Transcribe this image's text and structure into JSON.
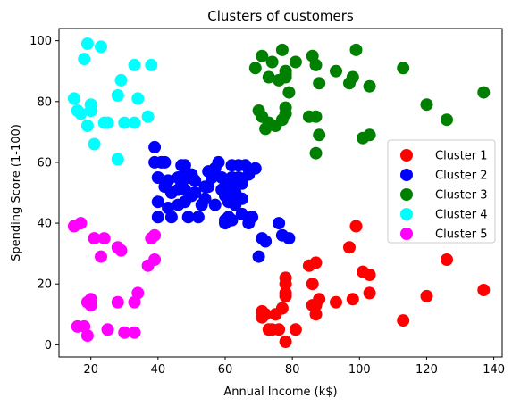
{
  "chart_data": {
    "type": "scatter",
    "title": "Clusters of customers",
    "xlabel": "Annual Income (k$)",
    "ylabel": "Spending Score (1-100)",
    "xlim": [
      10.5,
      142.5
    ],
    "ylim": [
      -4,
      104
    ],
    "xticks": [
      20,
      40,
      60,
      80,
      100,
      120,
      140
    ],
    "yticks": [
      0,
      20,
      40,
      60,
      80,
      100
    ],
    "grid": false,
    "legend_position": "center-right",
    "series": [
      {
        "name": "Cluster 1",
        "color": "#ff0000",
        "points": [
          [
            71,
            11
          ],
          [
            71,
            9
          ],
          [
            72,
            10
          ],
          [
            73,
            5
          ],
          [
            74,
            5
          ],
          [
            75,
            10
          ],
          [
            76,
            5
          ],
          [
            77,
            12
          ],
          [
            78,
            1
          ],
          [
            78,
            16
          ],
          [
            78,
            17
          ],
          [
            78,
            20
          ],
          [
            78,
            22
          ],
          [
            81,
            5
          ],
          [
            85,
            26
          ],
          [
            86,
            13
          ],
          [
            86,
            20
          ],
          [
            87,
            10
          ],
          [
            87,
            13
          ],
          [
            87,
            27
          ],
          [
            88,
            15
          ],
          [
            93,
            14
          ],
          [
            97,
            32
          ],
          [
            98,
            15
          ],
          [
            99,
            39
          ],
          [
            101,
            24
          ],
          [
            103,
            23
          ],
          [
            103,
            17
          ],
          [
            113,
            8
          ],
          [
            120,
            16
          ],
          [
            126,
            28
          ],
          [
            137,
            18
          ]
        ]
      },
      {
        "name": "Cluster 2",
        "color": "#0000ff",
        "points": [
          [
            39,
            65
          ],
          [
            39,
            60
          ],
          [
            40,
            55
          ],
          [
            40,
            47
          ],
          [
            40,
            42
          ],
          [
            41,
            60
          ],
          [
            42,
            60
          ],
          [
            42,
            52
          ],
          [
            43,
            54
          ],
          [
            43,
            45
          ],
          [
            44,
            42
          ],
          [
            44,
            50
          ],
          [
            46,
            51
          ],
          [
            46,
            55
          ],
          [
            46,
            46
          ],
          [
            47,
            53
          ],
          [
            47,
            59
          ],
          [
            48,
            47
          ],
          [
            48,
            51
          ],
          [
            48,
            56
          ],
          [
            48,
            59
          ],
          [
            49,
            55
          ],
          [
            49,
            42
          ],
          [
            50,
            49
          ],
          [
            50,
            56
          ],
          [
            51,
            54
          ],
          [
            51,
            50
          ],
          [
            52,
            42
          ],
          [
            53,
            46
          ],
          [
            54,
            52
          ],
          [
            54,
            48
          ],
          [
            55,
            52
          ],
          [
            55,
            57
          ],
          [
            56,
            55
          ],
          [
            57,
            46
          ],
          [
            57,
            58
          ],
          [
            58,
            60
          ],
          [
            59,
            55
          ],
          [
            59,
            51
          ],
          [
            60,
            41
          ],
          [
            60,
            49
          ],
          [
            60,
            40
          ],
          [
            60,
            52
          ],
          [
            61,
            42
          ],
          [
            61,
            47
          ],
          [
            62,
            59
          ],
          [
            62,
            55
          ],
          [
            62,
            41
          ],
          [
            63,
            52
          ],
          [
            63,
            50
          ],
          [
            63,
            46
          ],
          [
            64,
            59
          ],
          [
            64,
            55
          ],
          [
            65,
            53
          ],
          [
            65,
            48
          ],
          [
            65,
            43
          ],
          [
            66,
            59
          ],
          [
            67,
            56
          ],
          [
            67,
            40
          ],
          [
            68,
            42
          ],
          [
            69,
            58
          ],
          [
            70,
            29
          ],
          [
            71,
            35
          ],
          [
            72,
            34
          ],
          [
            76,
            40
          ],
          [
            77,
            36
          ],
          [
            79,
            35
          ]
        ]
      },
      {
        "name": "Cluster 3",
        "color": "#008000",
        "points": [
          [
            69,
            91
          ],
          [
            70,
            77
          ],
          [
            71,
            95
          ],
          [
            71,
            75
          ],
          [
            72,
            71
          ],
          [
            73,
            88
          ],
          [
            73,
            73
          ],
          [
            74,
            93
          ],
          [
            75,
            72
          ],
          [
            76,
            87
          ],
          [
            77,
            97
          ],
          [
            77,
            74
          ],
          [
            78,
            90
          ],
          [
            78,
            78
          ],
          [
            78,
            76
          ],
          [
            78,
            88
          ],
          [
            78,
            89
          ],
          [
            79,
            83
          ],
          [
            81,
            93
          ],
          [
            85,
            75
          ],
          [
            86,
            95
          ],
          [
            87,
            63
          ],
          [
            87,
            75
          ],
          [
            87,
            92
          ],
          [
            88,
            86
          ],
          [
            88,
            69
          ],
          [
            93,
            90
          ],
          [
            97,
            86
          ],
          [
            98,
            88
          ],
          [
            99,
            97
          ],
          [
            101,
            68
          ],
          [
            103,
            85
          ],
          [
            103,
            69
          ],
          [
            113,
            91
          ],
          [
            120,
            79
          ],
          [
            126,
            74
          ],
          [
            137,
            83
          ]
        ]
      },
      {
        "name": "Cluster 4",
        "color": "#00ffff",
        "points": [
          [
            15,
            81
          ],
          [
            16,
            77
          ],
          [
            17,
            76
          ],
          [
            18,
            94
          ],
          [
            19,
            72
          ],
          [
            19,
            99
          ],
          [
            20,
            77
          ],
          [
            20,
            79
          ],
          [
            21,
            66
          ],
          [
            23,
            98
          ],
          [
            24,
            73
          ],
          [
            25,
            73
          ],
          [
            28,
            82
          ],
          [
            28,
            61
          ],
          [
            29,
            87
          ],
          [
            30,
            73
          ],
          [
            33,
            92
          ],
          [
            33,
            73
          ],
          [
            34,
            81
          ],
          [
            37,
            75
          ],
          [
            38,
            92
          ]
        ]
      },
      {
        "name": "Cluster 5",
        "color": "#ff00ff",
        "points": [
          [
            15,
            39
          ],
          [
            16,
            6
          ],
          [
            17,
            40
          ],
          [
            18,
            6
          ],
          [
            19,
            3
          ],
          [
            19,
            14
          ],
          [
            20,
            15
          ],
          [
            20,
            13
          ],
          [
            21,
            35
          ],
          [
            23,
            29
          ],
          [
            24,
            35
          ],
          [
            25,
            5
          ],
          [
            28,
            14
          ],
          [
            28,
            32
          ],
          [
            29,
            31
          ],
          [
            30,
            4
          ],
          [
            33,
            4
          ],
          [
            33,
            14
          ],
          [
            34,
            17
          ],
          [
            37,
            26
          ],
          [
            38,
            35
          ],
          [
            39,
            36
          ],
          [
            39,
            28
          ]
        ]
      }
    ]
  }
}
